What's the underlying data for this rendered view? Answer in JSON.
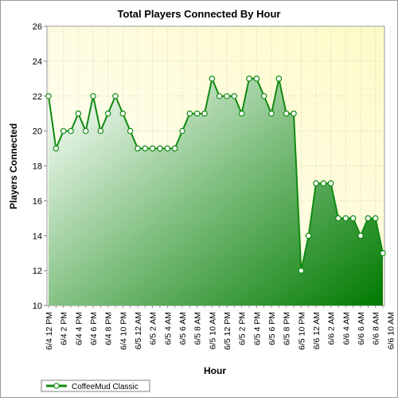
{
  "chart_data": {
    "type": "area",
    "title": "Total Players Connected By Hour",
    "xlabel": "Hour",
    "ylabel": "Players Connected",
    "ylim": [
      10,
      26
    ],
    "yticks": [
      10,
      12,
      14,
      16,
      18,
      20,
      22,
      24,
      26
    ],
    "grid": true,
    "legend_position": "bottom-left",
    "x_tick_labels": [
      "6/4 12 PM",
      "6/4 2 PM",
      "6/4 4 PM",
      "6/4 6 PM",
      "6/4 8 PM",
      "6/4 10 PM",
      "6/5 12 AM",
      "6/5 2 AM",
      "6/5 4 AM",
      "6/5 6 AM",
      "6/5 8 AM",
      "6/5 10 AM",
      "6/5 12 PM",
      "6/5 2 PM",
      "6/5 4 PM",
      "6/5 6 PM",
      "6/5 8 PM",
      "6/5 10 PM",
      "6/6 12 AM",
      "6/6 2 AM",
      "6/6 4 AM",
      "6/6 6 AM",
      "6/6 8 AM",
      "6/6 10 AM"
    ],
    "series": [
      {
        "name": "CoffeeMud Classic",
        "color": "#118a11",
        "values": [
          22,
          19,
          20,
          20,
          21,
          20,
          22,
          20,
          21,
          22,
          21,
          20,
          19,
          19,
          19,
          19,
          19,
          19,
          20,
          21,
          21,
          21,
          23,
          22,
          22,
          22,
          21,
          23,
          23,
          22,
          21,
          23,
          21,
          21,
          12,
          14,
          17,
          17,
          17,
          15,
          15,
          15,
          14,
          15,
          15,
          13
        ]
      }
    ]
  }
}
